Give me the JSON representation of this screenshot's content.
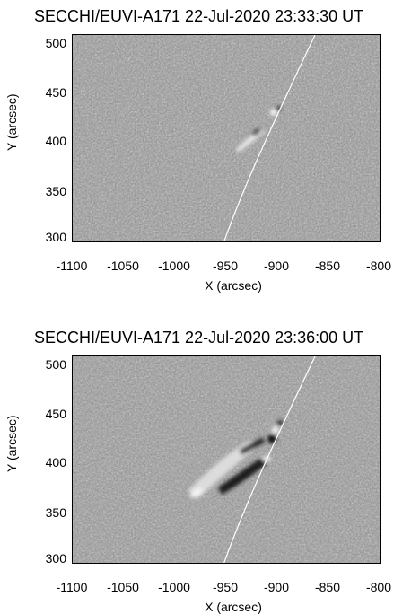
{
  "panels": [
    {
      "title": "SECCHI/EUVI-A171 22-Jul-2020 23:33:30 UT",
      "ylabel": "Y (arcsec)",
      "xlabel": "X (arcsec)",
      "yticks": [
        "500",
        "450",
        "400",
        "350",
        "300"
      ],
      "xticks": [
        "-1100",
        "-1050",
        "-1000",
        "-950",
        "-900",
        "-850",
        "-800"
      ]
    },
    {
      "title": "SECCHI/EUVI-A171 22-Jul-2020 23:36:00 UT",
      "ylabel": "Y (arcsec)",
      "xlabel": "X (arcsec)",
      "yticks": [
        "500",
        "450",
        "400",
        "350",
        "300"
      ],
      "xticks": [
        "-1100",
        "-1050",
        "-1000",
        "-950",
        "-900",
        "-850",
        "-800"
      ]
    }
  ],
  "colors": {
    "background_gray": "#8a8a8a",
    "limb_line": "#ffffff"
  }
}
